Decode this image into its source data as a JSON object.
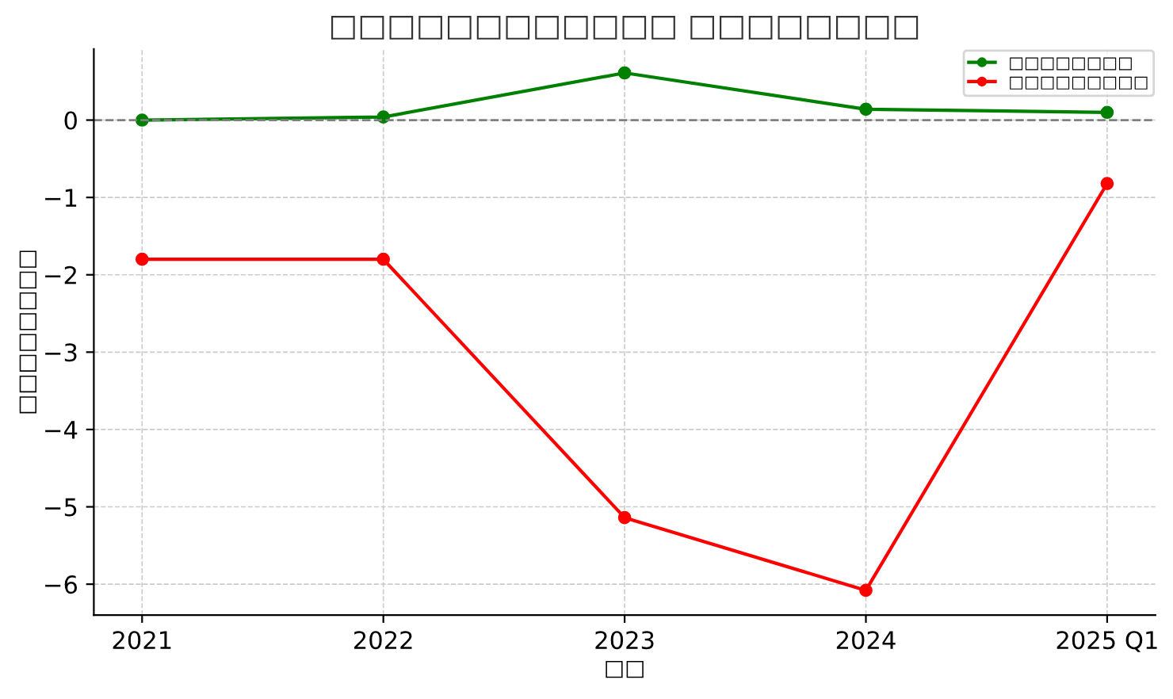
{
  "chart_data": {
    "type": "line",
    "title": "□□□□□□□□□□□□ □□□□□□□□",
    "xlabel": "□□",
    "ylabel": "□□□□□□□□",
    "categories": [
      "2021",
      "2022",
      "2023",
      "2024",
      "2025 Q1"
    ],
    "series": [
      {
        "name": "□□□□□□□□",
        "color": "#008000",
        "values": [
          0,
          0.04,
          0.61,
          0.14,
          0.1
        ]
      },
      {
        "name": "□□□□□□□□□",
        "color": "#ff0000",
        "values": [
          -1.8,
          -1.8,
          -5.14,
          -6.08,
          -0.82
        ]
      }
    ],
    "ylim": [
      -6.4,
      0.92
    ],
    "yticks": [
      0,
      -1,
      -2,
      -3,
      -4,
      -5,
      -6
    ],
    "ref_lines": [
      {
        "axis": "y",
        "value": 0,
        "color": "#808080",
        "line_style": "dashed"
      }
    ],
    "grid": true,
    "legend": "top right",
    "marker": "circle",
    "line_style": "solid"
  }
}
